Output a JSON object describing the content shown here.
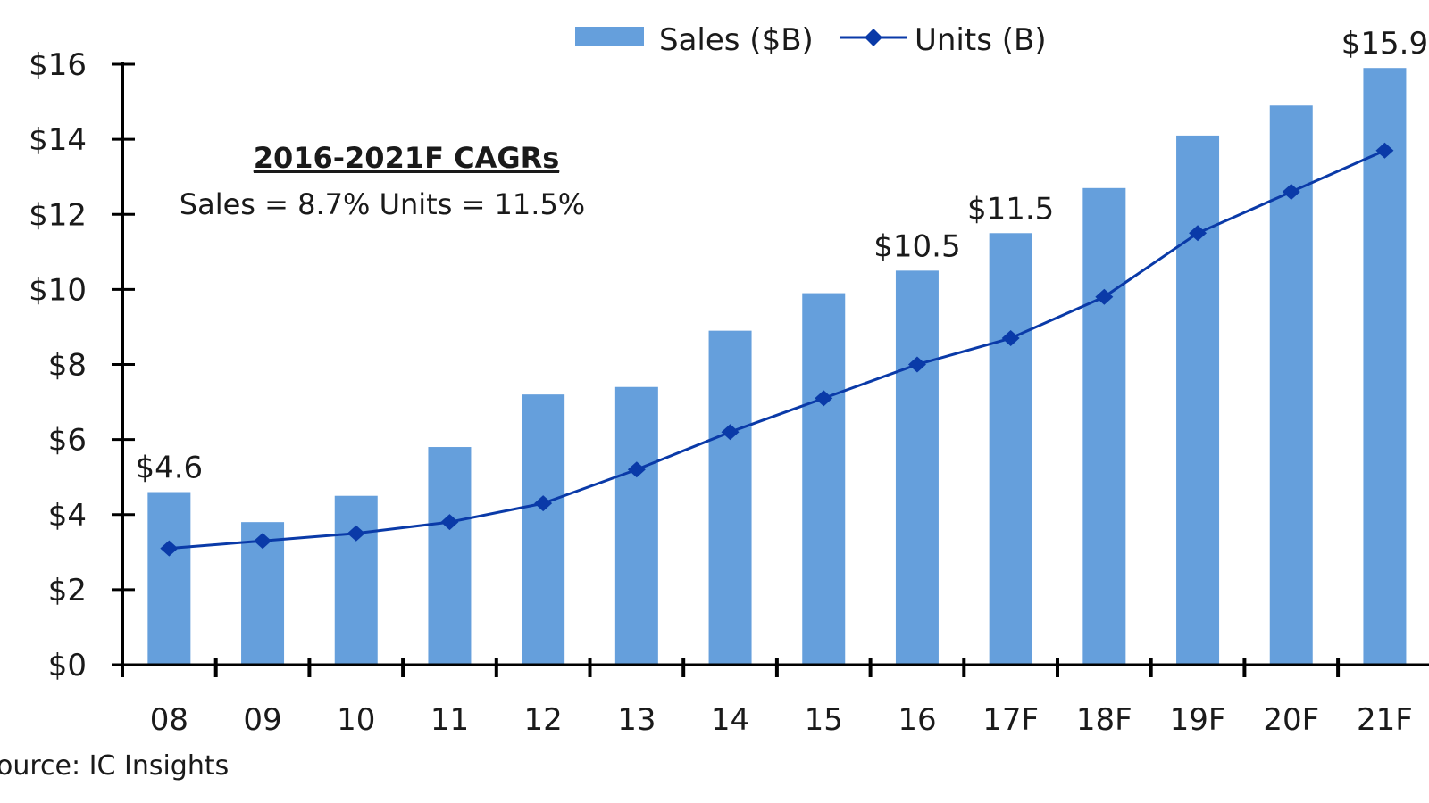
{
  "chart_data": {
    "type": "bar",
    "categories": [
      "08",
      "09",
      "10",
      "11",
      "12",
      "13",
      "14",
      "15",
      "16",
      "17F",
      "18F",
      "19F",
      "20F",
      "21F"
    ],
    "series": [
      {
        "name": "Sales ($B)",
        "kind": "bar",
        "color": "#659fdc",
        "values": [
          4.6,
          3.8,
          4.5,
          5.8,
          7.2,
          7.4,
          8.9,
          9.9,
          10.5,
          11.5,
          12.7,
          14.1,
          14.9,
          15.9
        ]
      },
      {
        "name": "Units (B)",
        "kind": "line",
        "marker": "diamond",
        "color": "#0a3aa8",
        "values": [
          3.1,
          3.3,
          3.5,
          3.8,
          4.3,
          5.2,
          6.2,
          7.1,
          8.0,
          8.7,
          9.8,
          11.5,
          12.6,
          13.7
        ]
      }
    ],
    "data_labels": [
      {
        "category": "08",
        "text": "$4.6"
      },
      {
        "category": "16",
        "text": "$10.5"
      },
      {
        "category": "17F",
        "text": "$11.5"
      },
      {
        "category": "21F",
        "text": "$15.9"
      }
    ],
    "yticks": [
      "$0",
      "$2",
      "$4",
      "$6",
      "$8",
      "$10",
      "$12",
      "$14",
      "$16"
    ],
    "ylim": [
      0,
      16
    ],
    "grid": false,
    "legend_placement": "top",
    "annotation": {
      "title": "2016-2021F CAGRs",
      "text": "Sales = 8.7%  Units = 11.5%"
    },
    "source": "ource: IC Insights"
  }
}
